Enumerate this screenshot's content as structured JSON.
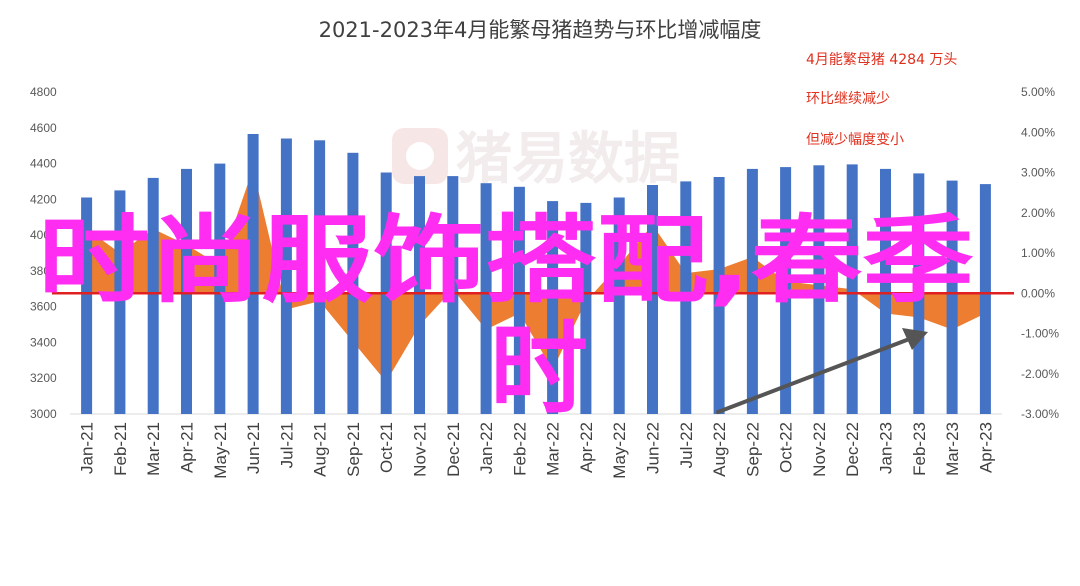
{
  "chart_data": {
    "type": "bar",
    "title": "2021-2023年4月能繁母猪趋势与环比增减幅度",
    "categories": [
      "Jan-21",
      "Feb-21",
      "Mar-21",
      "Apr-21",
      "May-21",
      "Jun-21",
      "Jul-21",
      "Aug-21",
      "Sep-21",
      "Oct-21",
      "Nov-21",
      "Dec-21",
      "Jan-22",
      "Feb-22",
      "Mar-22",
      "Apr-22",
      "May-22",
      "Jun-22",
      "Jul-22",
      "Aug-22",
      "Sep-22",
      "Oct-22",
      "Nov-22",
      "Dec-22",
      "Jan-23",
      "Feb-23",
      "Mar-23",
      "Apr-23"
    ],
    "series": [
      {
        "axis": "left",
        "chart_type": "bar",
        "color": "#4472c4",
        "values": [
          4210,
          4250,
          4320,
          4370,
          4400,
          4565,
          4540,
          4530,
          4460,
          4350,
          4330,
          4330,
          4290,
          4270,
          4190,
          4180,
          4210,
          4280,
          4300,
          4325,
          4370,
          4380,
          4390,
          4395,
          4370,
          4345,
          4305,
          4285
        ]
      },
      {
        "axis": "right",
        "chart_type": "area",
        "color": "#ed7d31",
        "values": [
          1.6,
          1.0,
          1.6,
          1.2,
          0.7,
          3.1,
          -0.4,
          -0.2,
          -1.2,
          -2.2,
          -0.8,
          0.1,
          -0.9,
          -0.5,
          -1.9,
          -0.2,
          0.7,
          1.7,
          0.5,
          0.6,
          0.9,
          0.3,
          0.2,
          0.1,
          -0.5,
          -0.6,
          -0.9,
          -0.5
        ]
      }
    ],
    "y_left": {
      "ticks": [
        "3000",
        "3200",
        "3400",
        "3600",
        "3800",
        "4000",
        "4200",
        "4400",
        "4600",
        "4800"
      ],
      "ylim": [
        3000,
        4800
      ]
    },
    "y_right": {
      "ticks": [
        "-3.00%",
        "-2.00%",
        "-1.00%",
        "0.00%",
        "1.00%",
        "2.00%",
        "3.00%",
        "4.00%",
        "5.00%"
      ],
      "ylim": [
        -3,
        5
      ]
    },
    "reference_line": {
      "axis": "right",
      "value": 0,
      "color": "#e02020"
    },
    "annotations": [
      "4月能繁母猪 4284 万头",
      "环比继续减少",
      "但减少幅度变小"
    ],
    "watermark": "猪易数据",
    "overlay_text": {
      "line1": "时尚服饰搭配,春季",
      "line2": "时"
    },
    "arrow_color": "#555555"
  }
}
